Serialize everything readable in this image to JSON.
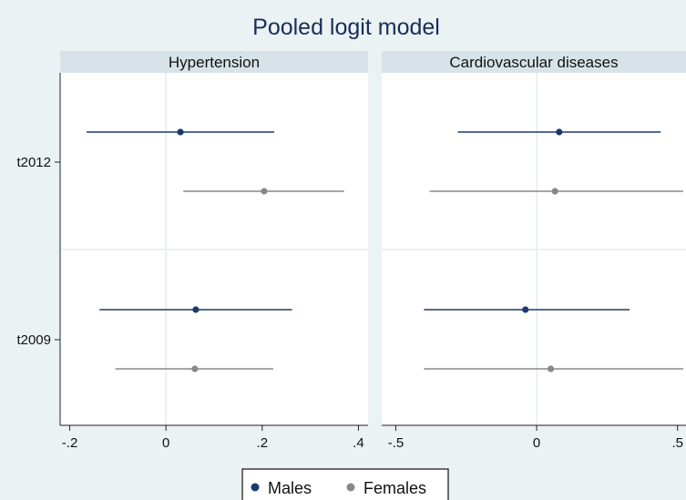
{
  "chart_data": {
    "type": "scatter",
    "subtype": "coefficient-plot-with-confidence-intervals",
    "title": "Pooled logit model",
    "categories": [
      "t2012",
      "t2009"
    ],
    "legend": {
      "position": "bottom",
      "entries": [
        {
          "name": "Males",
          "color": "#1a3a6b"
        },
        {
          "name": "Females",
          "color": "#888888"
        }
      ]
    },
    "grid": "x-zero-line and panel-midline",
    "panels": [
      {
        "name": "Hypertension",
        "xlim": [
          -0.22,
          0.42
        ],
        "xticks": [
          -0.2,
          0,
          0.2,
          0.4
        ],
        "xtick_labels": [
          "-.2",
          "0",
          ".2",
          ".4"
        ],
        "series": [
          {
            "name": "Males",
            "points": [
              {
                "category": "t2012",
                "estimate": 0.03,
                "lower": -0.165,
                "upper": 0.225
              },
              {
                "category": "t2009",
                "estimate": 0.062,
                "lower": -0.138,
                "upper": 0.262
              }
            ]
          },
          {
            "name": "Females",
            "points": [
              {
                "category": "t2012",
                "estimate": 0.204,
                "lower": 0.036,
                "upper": 0.37
              },
              {
                "category": "t2009",
                "estimate": 0.06,
                "lower": -0.105,
                "upper": 0.223
              }
            ]
          }
        ]
      },
      {
        "name": "Cardiovascular diseases",
        "xlim": [
          -0.55,
          0.53
        ],
        "xticks": [
          -0.5,
          0,
          0.5
        ],
        "xtick_labels": [
          "-.5",
          "0",
          ".5"
        ],
        "series": [
          {
            "name": "Males",
            "points": [
              {
                "category": "t2012",
                "estimate": 0.08,
                "lower": -0.28,
                "upper": 0.44
              },
              {
                "category": "t2009",
                "estimate": -0.04,
                "lower": -0.4,
                "upper": 0.33
              }
            ]
          },
          {
            "name": "Females",
            "points": [
              {
                "category": "t2012",
                "estimate": 0.065,
                "lower": -0.38,
                "upper": 0.52
              },
              {
                "category": "t2009",
                "estimate": 0.05,
                "lower": -0.4,
                "upper": 0.52
              }
            ]
          }
        ]
      }
    ]
  }
}
